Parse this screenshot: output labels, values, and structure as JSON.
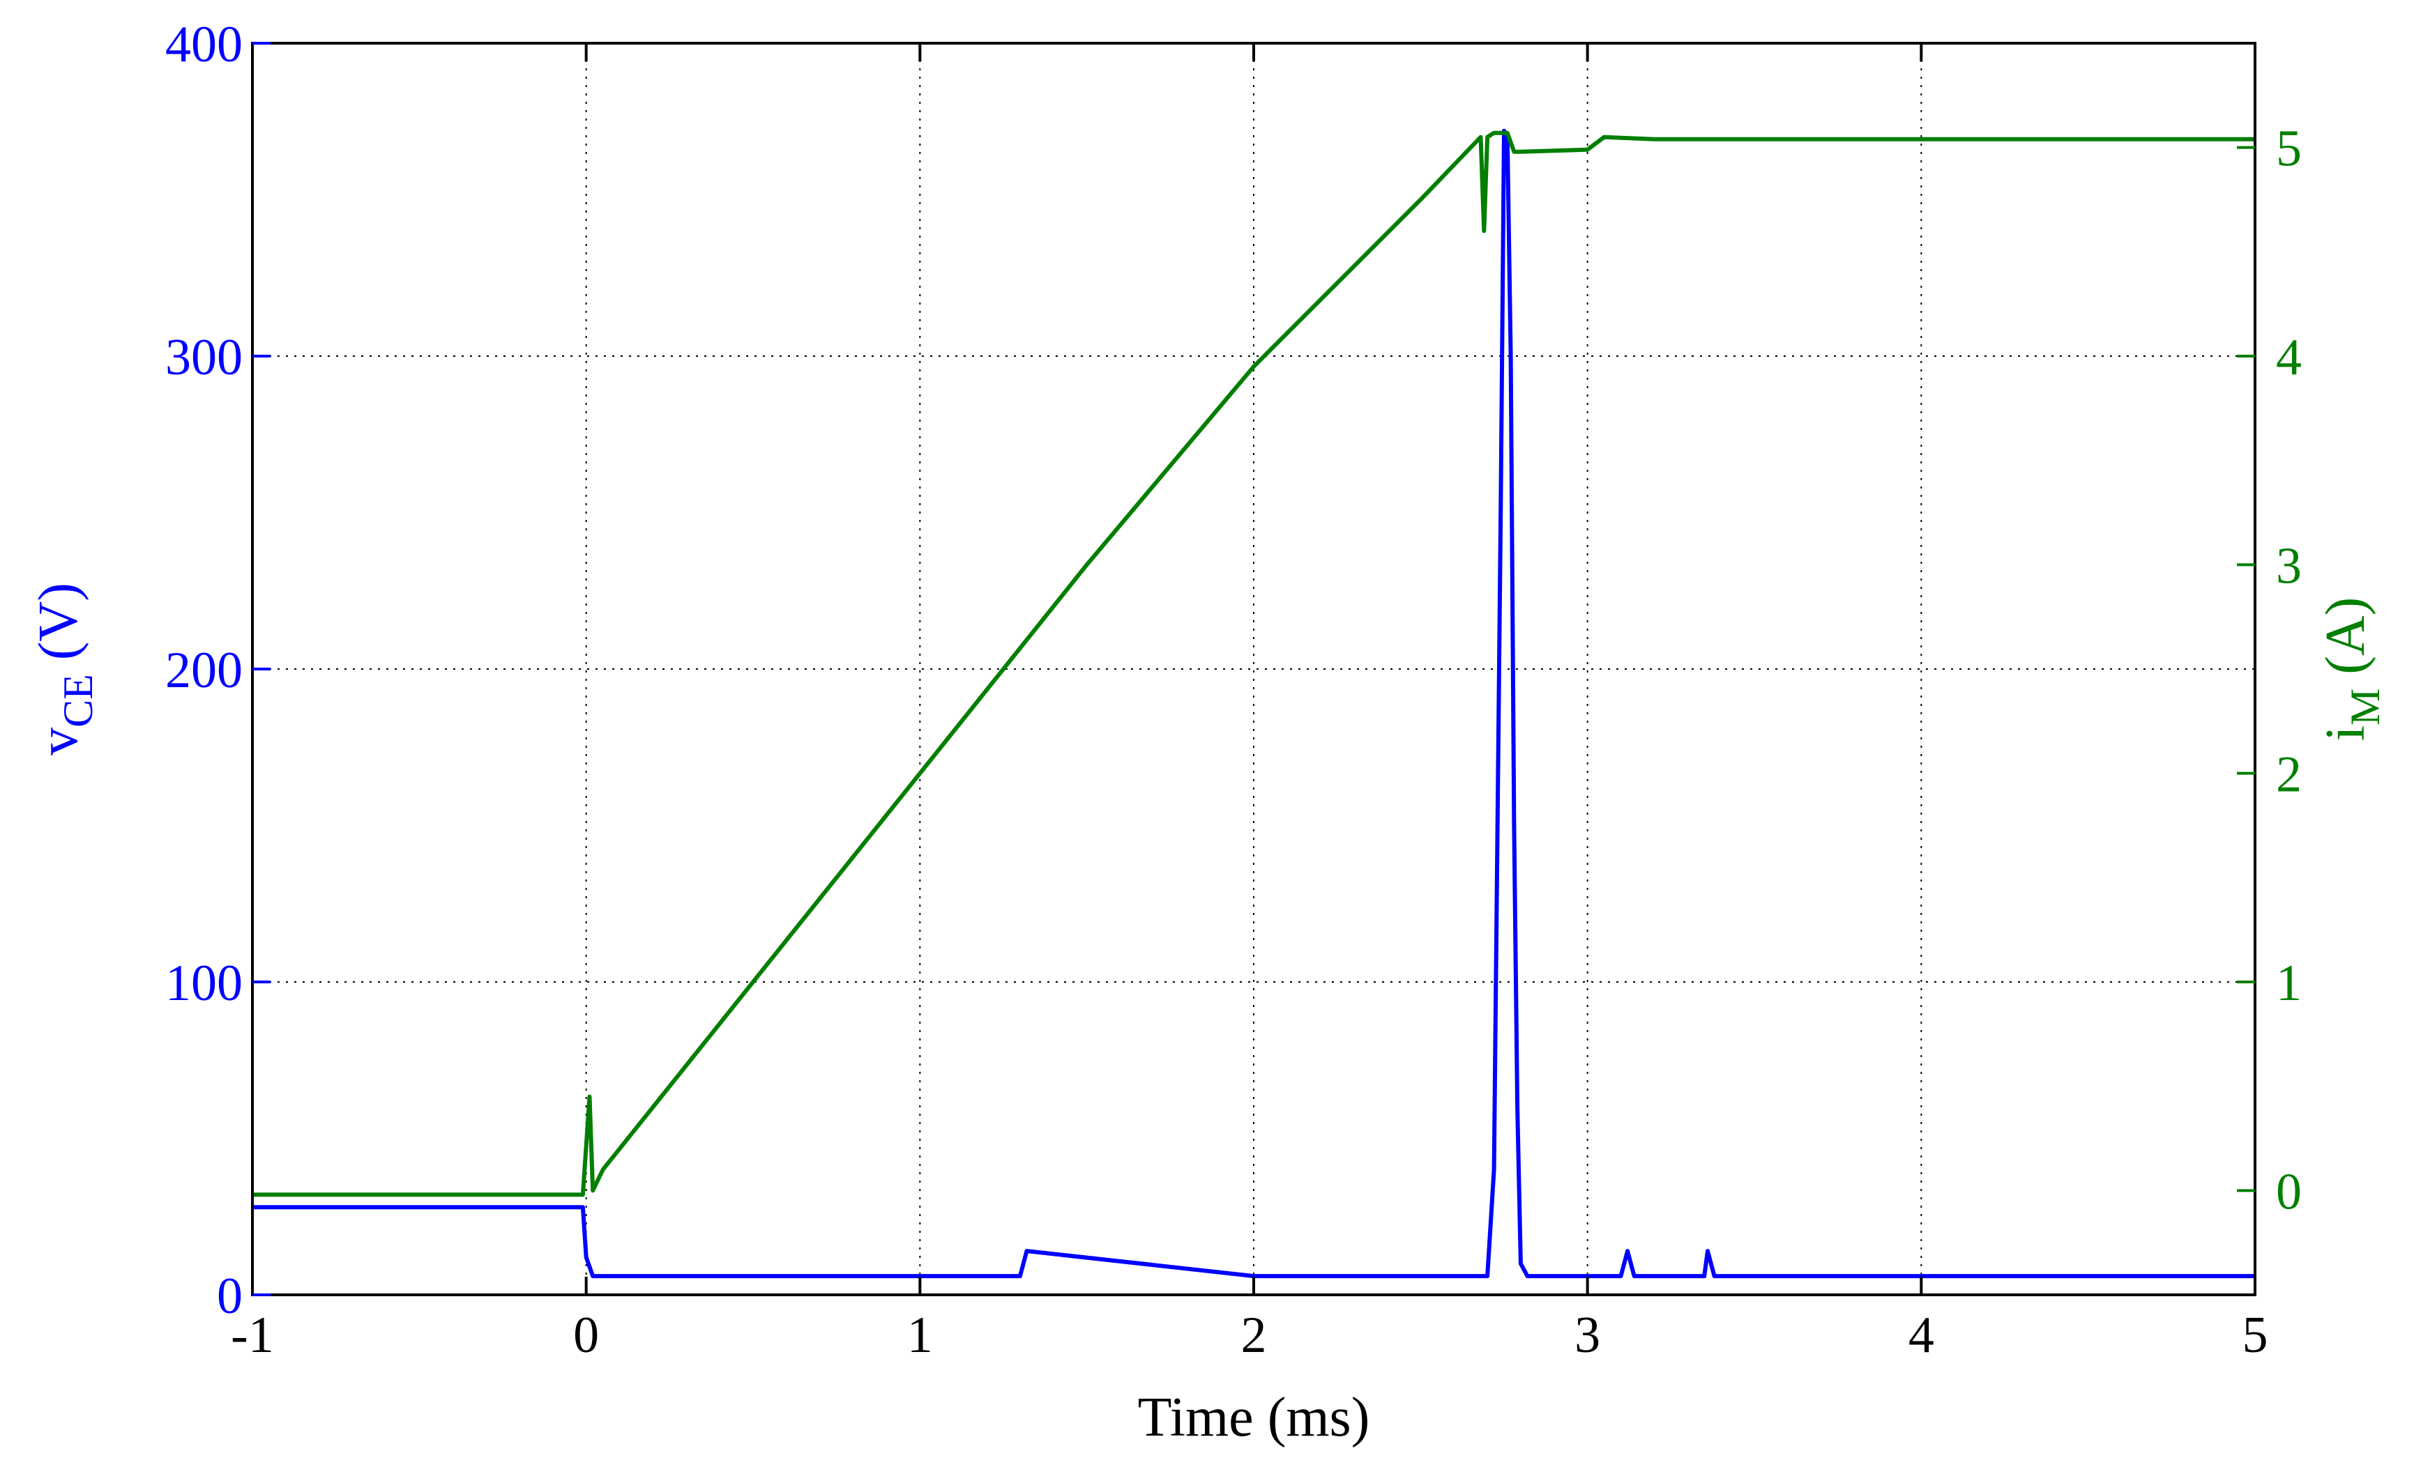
{
  "chart_data": {
    "type": "line",
    "title": "",
    "xlabel": "Time (ms)",
    "ylabel_left": {
      "main": "v",
      "sub": "CE",
      "unit": " (V)"
    },
    "ylabel_right": {
      "main": "i",
      "sub": "M",
      "unit": " (A)"
    },
    "xlim": [
      -1,
      5
    ],
    "ylim_left": [
      0,
      400
    ],
    "ylim_right": [
      -0.5,
      5.5
    ],
    "xticks": [
      "-1",
      "0",
      "1",
      "2",
      "3",
      "4",
      "5"
    ],
    "yticks_left": [
      "0",
      "100",
      "200",
      "300",
      "400"
    ],
    "yticks_right": [
      "0",
      "1",
      "2",
      "3",
      "4",
      "5"
    ],
    "grid": true,
    "colors": {
      "left": "#0000ff",
      "right": "#007f00",
      "grid": "#000000"
    },
    "series": [
      {
        "axis": "left",
        "color": "#0000ff",
        "x": [
          -1,
          -0.01,
          0.0,
          0.02,
          0.5,
          1.0,
          1.3,
          1.32,
          2.0,
          2.7,
          2.72,
          2.74,
          2.75,
          2.76,
          2.77,
          2.78,
          2.79,
          2.8,
          2.82,
          3.1,
          3.12,
          3.14,
          3.35,
          3.36,
          3.38,
          4.0,
          5.0
        ],
        "y": [
          28,
          28,
          12,
          6,
          6,
          6,
          6,
          14,
          6,
          6,
          40,
          250,
          372,
          370,
          300,
          150,
          60,
          10,
          6,
          6,
          14,
          6,
          6,
          14,
          6,
          6,
          6
        ]
      },
      {
        "axis": "right",
        "color": "#007f00",
        "x": [
          -1,
          -0.01,
          0.01,
          0.02,
          0.05,
          0.5,
          1.0,
          1.5,
          2.0,
          2.5,
          2.68,
          2.69,
          2.7,
          2.72,
          2.76,
          2.78,
          2.8,
          3.0,
          3.05,
          3.2,
          4.0,
          5.0
        ],
        "y": [
          -0.02,
          -0.02,
          0.45,
          0.0,
          0.1,
          1.0,
          2.0,
          3.0,
          3.95,
          4.75,
          5.05,
          4.6,
          5.05,
          5.07,
          5.07,
          4.98,
          4.98,
          4.99,
          5.05,
          5.04,
          5.04,
          5.04
        ]
      }
    ]
  }
}
